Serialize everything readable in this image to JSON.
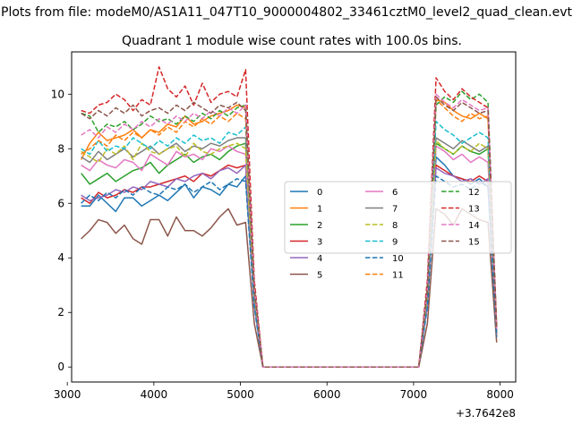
{
  "figure": {
    "suptitle": "Plots from file: modeM0/AS1A11_047T10_9000004802_33461cztM0_level2_quad_clean.evt"
  },
  "chart_data": {
    "type": "line",
    "title": "Quadrant 1 module wise count rates with 100.0s bins.",
    "xlabel": "",
    "ylabel": "",
    "x_offset_label": "+3.7642e8",
    "xlim": [
      3050,
      8180
    ],
    "ylim": [
      -0.55,
      11.55
    ],
    "xticks": [
      3000,
      4000,
      5000,
      6000,
      7000,
      8000
    ],
    "xtick_labels": [
      "3000",
      "4000",
      "5000",
      "6000",
      "7000",
      "8000"
    ],
    "yticks": [
      0,
      2,
      4,
      6,
      8,
      10
    ],
    "ytick_labels": [
      "0",
      "2",
      "4",
      "6",
      "8",
      "10"
    ],
    "grid": false,
    "legend_placement": "center-right",
    "legend_columns": 3,
    "x": [
      3160,
      3260,
      3360,
      3460,
      3560,
      3660,
      3760,
      3860,
      3960,
      4060,
      4160,
      4260,
      4360,
      4460,
      4560,
      4660,
      4760,
      4860,
      4960,
      5060,
      5160,
      5260,
      5360,
      5460,
      5560,
      5660,
      5760,
      5860,
      5960,
      6060,
      6160,
      6260,
      6360,
      6460,
      6560,
      6660,
      6760,
      6860,
      6960,
      7060,
      7160,
      7260,
      7360,
      7460,
      7560,
      7660,
      7760,
      7860,
      7960
    ],
    "series": [
      {
        "name": "0",
        "color": "#1f77b4",
        "dash": "solid",
        "values": [
          5.9,
          5.9,
          6.3,
          6.0,
          5.7,
          6.2,
          6.2,
          5.9,
          6.1,
          6.3,
          6.1,
          6.4,
          6.7,
          6.2,
          6.6,
          6.5,
          6.3,
          6.7,
          6.6,
          7.0,
          2.3,
          0,
          0,
          0,
          0,
          0,
          0,
          0,
          0,
          0,
          0,
          0,
          0,
          0,
          0,
          0,
          0,
          0,
          0,
          0,
          2.3,
          7.7,
          7.4,
          7.0,
          6.9,
          6.7,
          6.9,
          6.6,
          1.3
        ]
      },
      {
        "name": "1",
        "color": "#ff7f0e",
        "dash": "solid",
        "values": [
          7.6,
          8.2,
          8.6,
          8.3,
          8.4,
          8.5,
          8.7,
          8.4,
          8.7,
          8.6,
          8.9,
          8.8,
          9.2,
          8.9,
          9.0,
          9.2,
          9.3,
          9.4,
          9.6,
          9.5,
          2.8,
          0,
          0,
          0,
          0,
          0,
          0,
          0,
          0,
          0,
          0,
          0,
          0,
          0,
          0,
          0,
          0,
          0,
          0,
          0,
          2.9,
          9.8,
          9.7,
          9.4,
          9.2,
          9.1,
          9.3,
          9.1,
          1.5
        ]
      },
      {
        "name": "2",
        "color": "#2ca02c",
        "dash": "solid",
        "values": [
          7.1,
          6.7,
          6.9,
          7.1,
          6.8,
          7.0,
          7.2,
          7.3,
          7.5,
          7.1,
          7.4,
          7.6,
          7.8,
          7.5,
          7.7,
          7.8,
          7.6,
          7.9,
          8.1,
          8.2,
          2.5,
          0,
          0,
          0,
          0,
          0,
          0,
          0,
          0,
          0,
          0,
          0,
          0,
          0,
          0,
          0,
          0,
          0,
          0,
          0,
          2.5,
          8.2,
          8.0,
          7.8,
          8.1,
          7.9,
          7.8,
          8.0,
          1.3
        ]
      },
      {
        "name": "3",
        "color": "#d62728",
        "dash": "solid",
        "values": [
          6.2,
          6.0,
          6.4,
          6.2,
          6.3,
          6.5,
          6.4,
          6.6,
          6.6,
          6.7,
          6.8,
          6.9,
          7.0,
          6.8,
          7.1,
          7.0,
          7.2,
          7.4,
          7.3,
          7.4,
          2.4,
          0,
          0,
          0,
          0,
          0,
          0,
          0,
          0,
          0,
          0,
          0,
          0,
          0,
          0,
          0,
          0,
          0,
          0,
          0,
          2.4,
          7.4,
          7.2,
          7.0,
          6.9,
          6.8,
          7.0,
          6.8,
          1.2
        ]
      },
      {
        "name": "4",
        "color": "#9467bd",
        "dash": "solid",
        "values": [
          6.3,
          6.1,
          6.2,
          6.3,
          6.5,
          6.4,
          6.6,
          6.5,
          6.8,
          6.7,
          6.6,
          6.9,
          6.8,
          7.0,
          7.1,
          6.9,
          7.2,
          7.3,
          7.1,
          7.4,
          2.3,
          0,
          0,
          0,
          0,
          0,
          0,
          0,
          0,
          0,
          0,
          0,
          0,
          0,
          0,
          0,
          0,
          0,
          0,
          0,
          2.3,
          7.3,
          7.1,
          7.0,
          6.8,
          6.9,
          6.7,
          6.9,
          1.1
        ]
      },
      {
        "name": "5",
        "color": "#8c564b",
        "dash": "solid",
        "values": [
          4.7,
          5.0,
          5.4,
          5.3,
          4.9,
          5.2,
          4.7,
          4.5,
          5.4,
          5.4,
          4.8,
          5.5,
          5.0,
          5.0,
          4.8,
          5.1,
          5.5,
          5.8,
          5.2,
          5.3,
          1.6,
          0,
          0,
          0,
          0,
          0,
          0,
          0,
          0,
          0,
          0,
          0,
          0,
          0,
          0,
          0,
          0,
          0,
          0,
          0,
          1.6,
          5.8,
          5.6,
          5.2,
          5.8,
          5.6,
          5.4,
          5.3,
          0.9
        ]
      },
      {
        "name": "6",
        "color": "#e377c2",
        "dash": "solid",
        "values": [
          7.4,
          7.2,
          7.6,
          7.4,
          7.3,
          7.6,
          7.5,
          7.2,
          7.8,
          7.6,
          7.4,
          7.9,
          7.7,
          7.8,
          7.6,
          8.0,
          7.9,
          8.1,
          7.9,
          7.8,
          2.5,
          0,
          0,
          0,
          0,
          0,
          0,
          0,
          0,
          0,
          0,
          0,
          0,
          0,
          0,
          0,
          0,
          0,
          0,
          0,
          2.5,
          8.1,
          7.9,
          7.6,
          7.8,
          7.5,
          7.7,
          7.5,
          1.2
        ]
      },
      {
        "name": "7",
        "color": "#7f7f7f",
        "dash": "solid",
        "values": [
          7.7,
          7.5,
          7.9,
          7.6,
          7.8,
          8.0,
          7.7,
          7.9,
          8.1,
          7.8,
          8.0,
          8.2,
          7.9,
          8.1,
          8.0,
          8.2,
          8.1,
          8.3,
          8.4,
          8.4,
          2.6,
          0,
          0,
          0,
          0,
          0,
          0,
          0,
          0,
          0,
          0,
          0,
          0,
          0,
          0,
          0,
          0,
          0,
          0,
          0,
          2.6,
          8.4,
          8.2,
          8.0,
          8.3,
          8.1,
          7.9,
          8.1,
          1.2
        ]
      },
      {
        "name": "8",
        "color": "#bcbd22",
        "dash": "dashed",
        "values": [
          7.9,
          7.7,
          7.5,
          8.0,
          7.8,
          8.1,
          7.6,
          8.2,
          7.9,
          7.8,
          8.0,
          8.1,
          7.7,
          8.2,
          7.9,
          7.8,
          8.0,
          8.1,
          8.2,
          8.0,
          2.6,
          0,
          0,
          0,
          0,
          0,
          0,
          0,
          0,
          0,
          0,
          0,
          0,
          0,
          0,
          0,
          0,
          0,
          0,
          0,
          2.6,
          8.3,
          8.0,
          7.8,
          8.1,
          7.9,
          8.2,
          8.0,
          1.3
        ]
      },
      {
        "name": "9",
        "color": "#17becf",
        "dash": "dashed",
        "values": [
          8.0,
          7.8,
          8.3,
          7.9,
          8.1,
          8.0,
          8.4,
          8.2,
          8.0,
          8.3,
          8.1,
          8.4,
          8.2,
          8.5,
          8.3,
          8.4,
          8.2,
          8.6,
          8.5,
          8.8,
          2.7,
          0,
          0,
          0,
          0,
          0,
          0,
          0,
          0,
          0,
          0,
          0,
          0,
          0,
          0,
          0,
          0,
          0,
          0,
          0,
          2.7,
          9.0,
          8.7,
          8.5,
          8.2,
          8.4,
          8.6,
          8.4,
          1.4
        ]
      },
      {
        "name": "10",
        "color": "#1f77b4",
        "dash": "dashed",
        "values": [
          6.0,
          6.3,
          6.1,
          6.4,
          6.2,
          6.5,
          6.3,
          6.6,
          6.4,
          6.3,
          6.6,
          6.5,
          6.7,
          6.4,
          6.6,
          6.8,
          6.5,
          6.7,
          6.9,
          6.8,
          2.2,
          0,
          0,
          0,
          0,
          0,
          0,
          0,
          0,
          0,
          0,
          0,
          0,
          0,
          0,
          0,
          0,
          0,
          0,
          0,
          2.2,
          7.0,
          6.8,
          6.6,
          6.7,
          6.5,
          6.8,
          6.6,
          1.1
        ]
      },
      {
        "name": "11",
        "color": "#ff7f0e",
        "dash": "dashed",
        "values": [
          7.8,
          8.0,
          8.3,
          8.1,
          8.5,
          8.3,
          8.6,
          8.4,
          8.7,
          8.5,
          8.8,
          8.6,
          9.0,
          8.8,
          9.1,
          8.9,
          9.2,
          9.0,
          9.3,
          9.1,
          2.8,
          0,
          0,
          0,
          0,
          0,
          0,
          0,
          0,
          0,
          0,
          0,
          0,
          0,
          0,
          0,
          0,
          0,
          0,
          0,
          2.8,
          9.8,
          9.5,
          9.2,
          9.0,
          9.3,
          9.1,
          9.2,
          1.4
        ]
      },
      {
        "name": "12",
        "color": "#2ca02c",
        "dash": "dashed",
        "values": [
          9.3,
          9.2,
          8.6,
          8.9,
          8.8,
          9.0,
          8.7,
          8.9,
          9.2,
          9.0,
          9.1,
          8.9,
          9.2,
          9.0,
          9.3,
          9.1,
          9.4,
          9.2,
          9.5,
          9.6,
          2.9,
          0,
          0,
          0,
          0,
          0,
          0,
          0,
          0,
          0,
          0,
          0,
          0,
          0,
          0,
          0,
          0,
          0,
          0,
          0,
          2.9,
          9.6,
          9.9,
          9.7,
          10.1,
          9.8,
          10.0,
          9.7,
          1.5
        ]
      },
      {
        "name": "13",
        "color": "#d62728",
        "dash": "dashed",
        "values": [
          9.4,
          9.3,
          9.6,
          9.7,
          10.0,
          9.8,
          9.4,
          9.8,
          9.6,
          11.0,
          10.2,
          9.9,
          10.3,
          9.6,
          10.4,
          9.7,
          10.0,
          10.1,
          9.9,
          10.9,
          3.2,
          0,
          0,
          0,
          0,
          0,
          0,
          0,
          0,
          0,
          0,
          0,
          0,
          0,
          0,
          0,
          0,
          0,
          0,
          0,
          3.2,
          10.6,
          10.1,
          9.8,
          10.2,
          9.9,
          9.7,
          9.5,
          1.4
        ]
      },
      {
        "name": "14",
        "color": "#e377c2",
        "dash": "dashed",
        "values": [
          8.5,
          8.7,
          8.4,
          8.8,
          8.6,
          8.9,
          8.7,
          9.0,
          8.8,
          9.1,
          8.9,
          9.2,
          9.0,
          9.3,
          9.1,
          9.4,
          9.2,
          9.5,
          9.3,
          9.6,
          2.9,
          0,
          0,
          0,
          0,
          0,
          0,
          0,
          0,
          0,
          0,
          0,
          0,
          0,
          0,
          0,
          0,
          0,
          0,
          0,
          2.9,
          10.0,
          9.7,
          9.5,
          9.8,
          9.6,
          9.4,
          9.5,
          1.4
        ]
      },
      {
        "name": "15",
        "color": "#8c564b",
        "dash": "dashed",
        "values": [
          9.3,
          9.1,
          9.4,
          9.2,
          9.5,
          9.3,
          9.6,
          9.2,
          9.4,
          9.5,
          9.3,
          9.6,
          9.4,
          9.7,
          9.5,
          9.3,
          9.6,
          9.5,
          9.7,
          9.4,
          2.9,
          0,
          0,
          0,
          0,
          0,
          0,
          0,
          0,
          0,
          0,
          0,
          0,
          0,
          0,
          0,
          0,
          0,
          0,
          0,
          2.9,
          9.9,
          9.6,
          9.4,
          9.7,
          9.5,
          9.3,
          9.4,
          1.4
        ]
      }
    ]
  }
}
